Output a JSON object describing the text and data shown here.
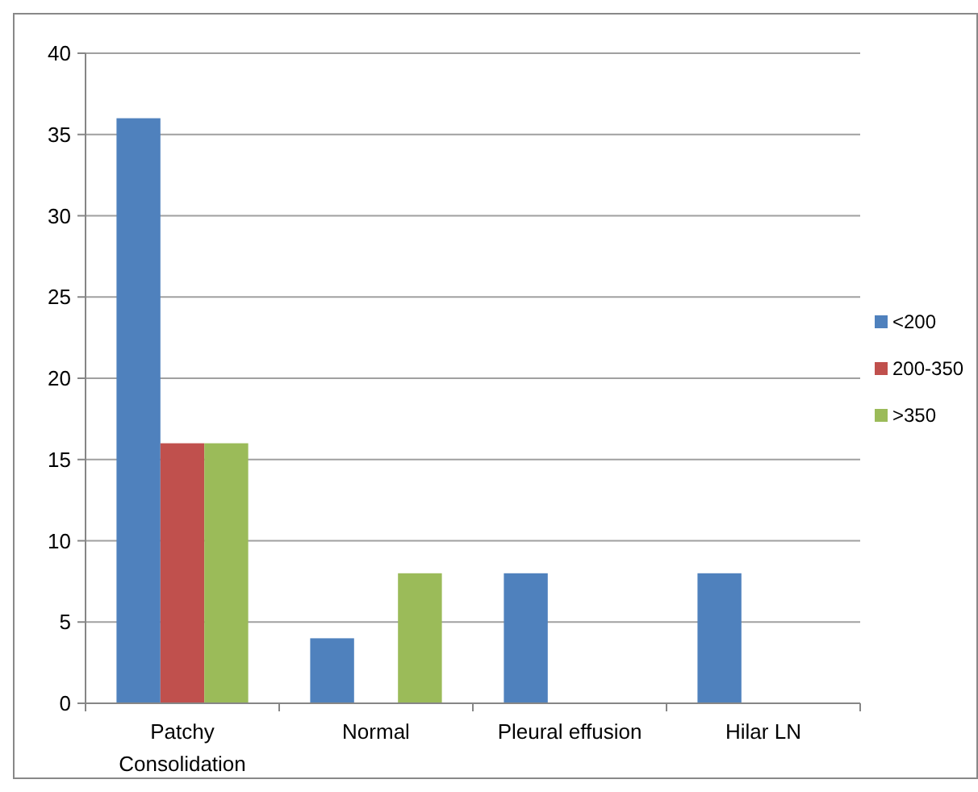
{
  "chart_data": {
    "type": "bar",
    "categories": [
      "Patchy Consolidation",
      "Normal",
      "Pleural effusion",
      "Hilar LN"
    ],
    "series": [
      {
        "name": "<200",
        "color": "#4f81bd",
        "values": [
          36,
          4,
          8,
          8
        ]
      },
      {
        "name": "200-350",
        "color": "#c0504d",
        "values": [
          16,
          0,
          0,
          0
        ]
      },
      {
        "name": ">350",
        "color": "#9bbb59",
        "values": [
          16,
          8,
          0,
          0
        ]
      }
    ],
    "ylim": [
      0,
      40
    ],
    "yticks": [
      0,
      5,
      10,
      15,
      20,
      25,
      30,
      35,
      40
    ],
    "grid": "y",
    "legend": "right"
  }
}
